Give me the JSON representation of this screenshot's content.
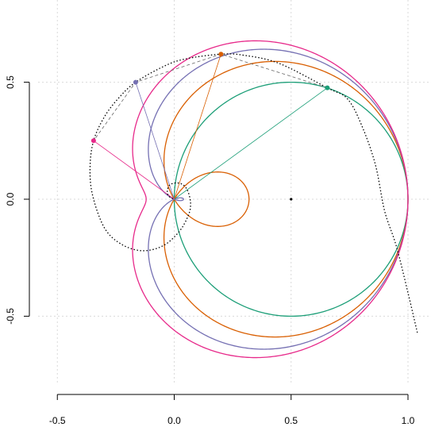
{
  "chart_data": {
    "type": "line",
    "title": "",
    "xlabel": "",
    "ylabel": "",
    "xlim": [
      -0.5,
      1.0
    ],
    "ylim": [
      -0.5,
      0.5
    ],
    "grid": true,
    "x_ticks": [
      {
        "value": -0.5,
        "label": "-0.5"
      },
      {
        "value": 0.0,
        "label": "0.0"
      },
      {
        "value": 0.5,
        "label": "0.5"
      },
      {
        "value": 1.0,
        "label": "1.0"
      }
    ],
    "y_ticks": [
      {
        "value": -0.5,
        "label": "-0.5"
      },
      {
        "value": 0.0,
        "label": "0.0"
      },
      {
        "value": 0.5,
        "label": "0.5"
      }
    ],
    "center_point": {
      "x": 0.5,
      "y": 0.0
    },
    "colors": {
      "green": "#1b9e77",
      "orange": "#d95f02",
      "purple": "#7570b3",
      "pink": "#e7298a",
      "black": "#000000"
    },
    "series": [
      {
        "color": "#1b9e77",
        "curve": "circle",
        "center": [
          0.5,
          0.0
        ],
        "radius": 0.5,
        "marker": {
          "x": 0.655,
          "y": 0.476
        }
      },
      {
        "color": "#d95f02",
        "curve": "limacon",
        "a": 0.34,
        "b": 0.66,
        "marker": {
          "x": 0.2,
          "y": 0.62
        }
      },
      {
        "color": "#7570b3",
        "curve": "limacon",
        "a": 0.48,
        "b": 0.52,
        "marker": {
          "x": -0.165,
          "y": 0.5
        }
      },
      {
        "color": "#e7298a",
        "curve": "limacon",
        "a": 0.56,
        "b": 0.44,
        "marker": {
          "x": -0.345,
          "y": 0.25
        }
      }
    ],
    "envelope": {
      "color": "#000000",
      "style": "dotted",
      "description": "spiral envelope through markers",
      "points": [
        [
          1.04,
          -0.57
        ],
        [
          1.0,
          -0.4
        ],
        [
          0.95,
          -0.2
        ],
        [
          0.9,
          -0.05
        ],
        [
          0.86,
          0.15
        ],
        [
          0.8,
          0.32
        ],
        [
          0.74,
          0.43
        ],
        [
          0.655,
          0.476
        ],
        [
          0.45,
          0.58
        ],
        [
          0.3,
          0.615
        ],
        [
          0.2,
          0.62
        ],
        [
          0.05,
          0.6
        ],
        [
          -0.04,
          0.57
        ],
        [
          -0.165,
          0.5
        ],
        [
          -0.24,
          0.43
        ],
        [
          -0.3,
          0.35
        ],
        [
          -0.345,
          0.25
        ],
        [
          -0.36,
          0.14
        ],
        [
          -0.35,
          0.02
        ],
        [
          -0.3,
          -0.12
        ],
        [
          -0.23,
          -0.19
        ],
        [
          -0.14,
          -0.22
        ],
        [
          -0.05,
          -0.2
        ],
        [
          0.02,
          -0.14
        ],
        [
          0.06,
          -0.07
        ],
        [
          0.07,
          -0.02
        ],
        [
          0.06,
          0.03
        ],
        [
          0.04,
          0.06
        ],
        [
          0.01,
          0.07
        ],
        [
          -0.02,
          0.06
        ],
        [
          -0.03,
          0.03
        ],
        [
          -0.02,
          0.01
        ],
        [
          0.0,
          0.0
        ]
      ]
    }
  }
}
